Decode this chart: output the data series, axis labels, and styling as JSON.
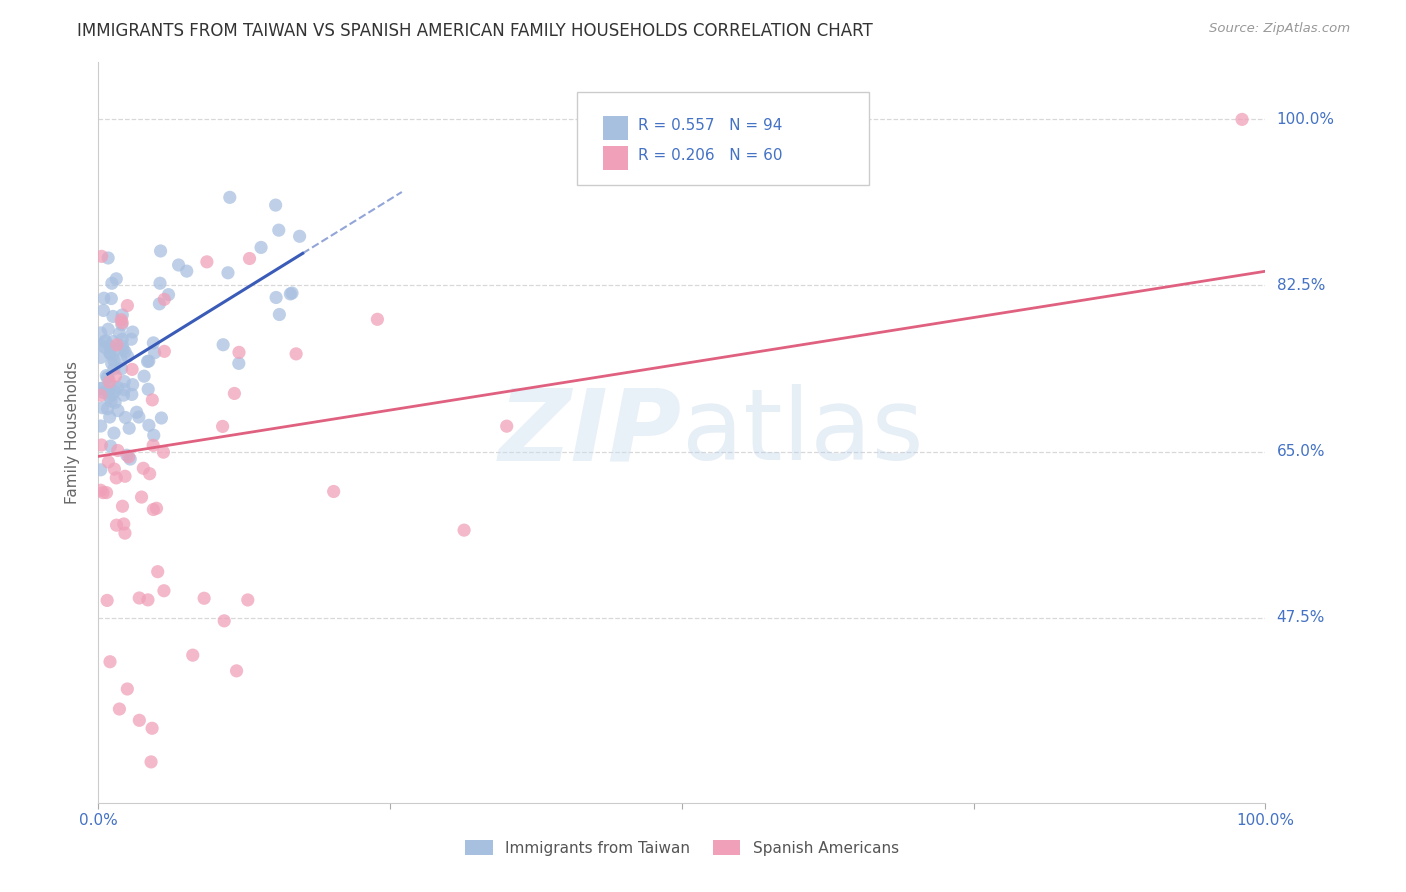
{
  "title": "IMMIGRANTS FROM TAIWAN VS SPANISH AMERICAN FAMILY HOUSEHOLDS CORRELATION CHART",
  "source": "Source: ZipAtlas.com",
  "ylabel": "Family Households",
  "yticks": [
    "100.0%",
    "82.5%",
    "65.0%",
    "47.5%"
  ],
  "ytick_vals": [
    1.0,
    0.825,
    0.65,
    0.475
  ],
  "xlim": [
    0.0,
    1.0
  ],
  "ylim": [
    0.28,
    1.06
  ],
  "taiwan_color": "#a8c0e0",
  "spanish_color": "#f0a0b8",
  "taiwan_line_color": "#3a5cb8",
  "spanish_line_color": "#e06080",
  "taiwan_R": 0.557,
  "taiwan_N": 94,
  "spanish_R": 0.206,
  "spanish_N": 60,
  "background_color": "#ffffff",
  "grid_color": "#d8d8d8",
  "tick_color": "#4472c4"
}
